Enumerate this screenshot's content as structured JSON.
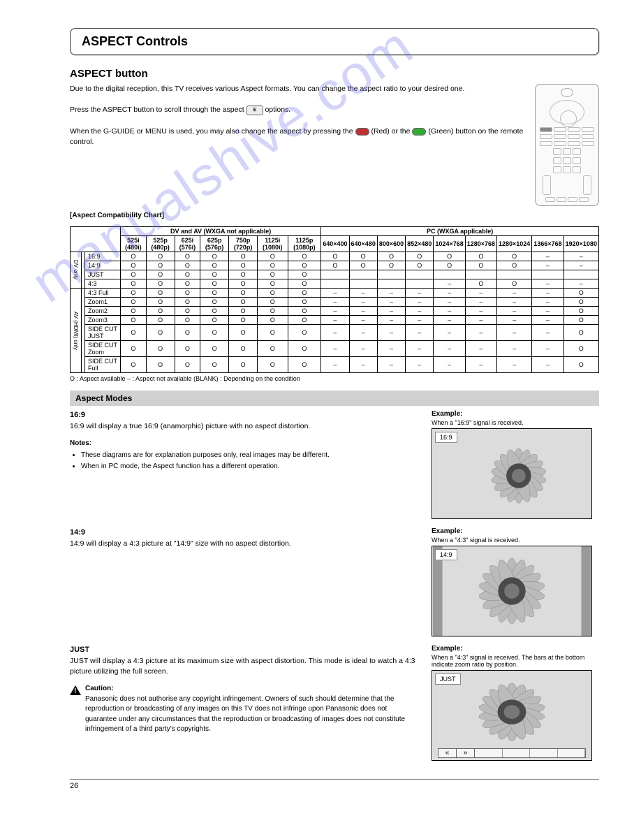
{
  "watermark": "manualshive.com",
  "title": "ASPECT Controls",
  "subtitle": "ASPECT button",
  "intro": {
    "p1": "Due to the digital reception, this TV receives various Aspect formats. You can change the aspect ratio to your desired one.",
    "p2_a": "Press the ASPECT button to scroll through the aspect ",
    "p2_b": " options.",
    "p3_a": "When the G-GUIDE or MENU is used, you may also change the aspect by pressing the ",
    "p3_b": " (Red) or the ",
    "p3_c": " (Green) button on the remote control."
  },
  "compat_chart": {
    "caption": "[Aspect Compatibility Chart]",
    "row_headers": [
      "16:9",
      "14:9",
      "JUST",
      "4:3",
      "4:3 Full",
      "Zoom1",
      "Zoom2",
      "Zoom3",
      "SIDE CUT JUST",
      "SIDE CUT Zoom",
      "SIDE CUT Full"
    ],
    "dv_cols": [
      "525i (480i)",
      "525p (480p)",
      "625i (576i)",
      "625p (576p)",
      "750p (720p)",
      "1125i (1080i)",
      "1125p (1080p)"
    ],
    "pc_cols": [
      "640×400",
      "640×480",
      "800×600",
      "852×480",
      "1024×768",
      "1280×768",
      "1280×1024",
      "1366×768",
      "1920×1080"
    ],
    "groups": {
      "dv": "DV and AV (WXGA not applicable)",
      "pc": "PC (WXGA applicable)"
    },
    "side_dv": "DV only",
    "side_av": "AV (HDMI) only",
    "rows": [
      {
        "label": "16:9",
        "span": "dv",
        "cells": [
          "O",
          "O",
          "O",
          "O",
          "O",
          "O",
          "O",
          "O",
          "O",
          "O",
          "O",
          "O",
          "O",
          "O",
          "–",
          "–"
        ]
      },
      {
        "label": "14:9",
        "span": "dv",
        "cells": [
          "O",
          "O",
          "O",
          "O",
          "O",
          "O",
          "O",
          "O",
          "O",
          "O",
          "O",
          "O",
          "O",
          "O",
          "–",
          "–"
        ]
      },
      {
        "label": "JUST",
        "span": "dv",
        "cells": [
          "O",
          "O",
          "O",
          "O",
          "O",
          "O",
          "O",
          "",
          "",
          "",
          "",
          "",
          "",
          "",
          "",
          ""
        ]
      },
      {
        "label": "4:3",
        "span": "dv",
        "cells": [
          "O",
          "O",
          "O",
          "O",
          "O",
          "O",
          "O",
          "",
          "",
          "",
          "",
          "–",
          "O",
          "O",
          "–",
          "–"
        ]
      },
      {
        "label": "4:3 Full",
        "span": "av",
        "cells": [
          "O",
          "O",
          "O",
          "O",
          "O",
          "O",
          "O",
          "–",
          "–",
          "–",
          "–",
          "–",
          "–",
          "–",
          "–",
          "O"
        ]
      },
      {
        "label": "Zoom1",
        "span": "av",
        "cells": [
          "O",
          "O",
          "O",
          "O",
          "O",
          "O",
          "O",
          "–",
          "–",
          "–",
          "–",
          "–",
          "–",
          "–",
          "–",
          "O"
        ]
      },
      {
        "label": "Zoom2",
        "span": "av",
        "cells": [
          "O",
          "O",
          "O",
          "O",
          "O",
          "O",
          "O",
          "–",
          "–",
          "–",
          "–",
          "–",
          "–",
          "–",
          "–",
          "O"
        ]
      },
      {
        "label": "Zoom3",
        "span": "av",
        "cells": [
          "O",
          "O",
          "O",
          "O",
          "O",
          "O",
          "O",
          "–",
          "–",
          "–",
          "–",
          "–",
          "–",
          "–",
          "–",
          "O"
        ]
      },
      {
        "label": "SIDE CUT JUST",
        "span": "av",
        "cells": [
          "O",
          "O",
          "O",
          "O",
          "O",
          "O",
          "O",
          "–",
          "–",
          "–",
          "–",
          "–",
          "–",
          "–",
          "–",
          "O"
        ]
      },
      {
        "label": "SIDE CUT Zoom",
        "span": "av",
        "cells": [
          "O",
          "O",
          "O",
          "O",
          "O",
          "O",
          "O",
          "–",
          "–",
          "–",
          "–",
          "–",
          "–",
          "–",
          "–",
          "O"
        ]
      },
      {
        "label": "SIDE CUT Full",
        "span": "av",
        "cells": [
          "O",
          "O",
          "O",
          "O",
          "O",
          "O",
          "O",
          "–",
          "–",
          "–",
          "–",
          "–",
          "–",
          "–",
          "–",
          "O"
        ]
      }
    ],
    "legend": "O : Aspect available      – : Aspect not available      (BLANK) : Depending on the condition"
  },
  "modes_header": "Aspect Modes",
  "modes": [
    {
      "key": "16:9",
      "title": "16:9",
      "text": "16:9 will display a true 16:9 (anamorphic) picture with no aspect distortion.",
      "example_head": "Example:",
      "example_sub": "When a \"16:9\" signal is received.",
      "label": "16:9"
    },
    {
      "key": "14:9",
      "title": "14:9",
      "text": "14:9 will display a 4:3 picture at \"14:9\" size with no aspect distortion.",
      "example_head": "Example:",
      "example_sub": "When a \"4:3\" signal is received.",
      "label": "14:9"
    },
    {
      "key": "just",
      "title": "JUST",
      "text": "JUST will display a 4:3 picture at its maximum size with aspect distortion. This mode is ideal to watch a 4:3 picture utilizing the full screen.",
      "example_head": "Example:",
      "example_sub": "When a \"4:3\" signal is received. The bars at the bottom indicate zoom ratio by position.",
      "label": "JUST"
    }
  ],
  "notes": {
    "head": "Notes:",
    "items": [
      "These diagrams are for explanation purposes only, real images may be different.",
      "When in PC mode, the Aspect function has a different operation."
    ]
  },
  "caution": {
    "head": "Caution:",
    "text": "Panasonic does not authorise any copyright infringement. Owners of such should determine that the reproduction or broadcasting of any images on this TV does not infringe upon Panasonic does not guarantee under any circumstances that the reproduction or broadcasting of images does not constitute infringement of a third party's copyrights."
  },
  "page_number": "26"
}
